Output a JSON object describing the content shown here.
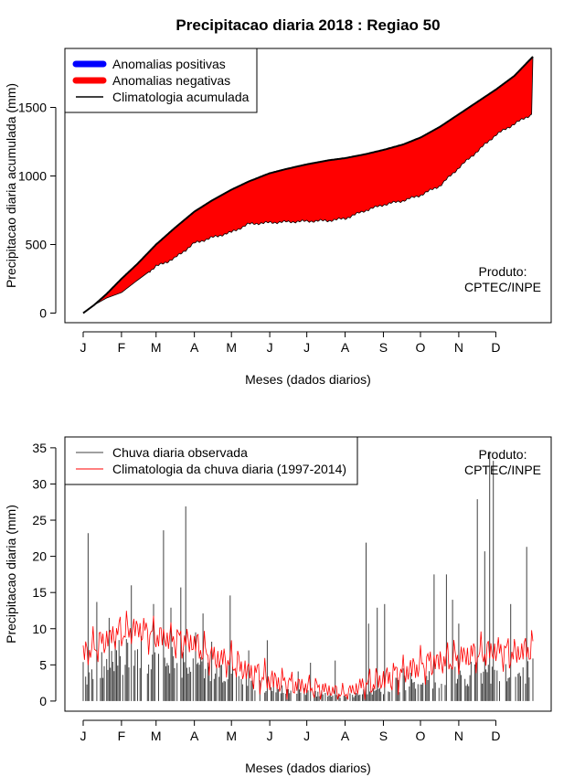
{
  "title": "Precipitacao diaria 2018 : Regiao 50",
  "credit": [
    "Produto:",
    "CPTEC/INPE"
  ],
  "chart_data": [
    {
      "type": "area",
      "xlabel": "Meses (dados diarios)",
      "ylabel": "Precipitacao diaria acumulada (mm)",
      "xlim": [
        1,
        365
      ],
      "ylim": [
        -70,
        1930
      ],
      "yticks": [
        0,
        500,
        1000,
        1500
      ],
      "month_labels": [
        "J",
        "F",
        "M",
        "A",
        "M",
        "J",
        "J",
        "A",
        "S",
        "O",
        "N",
        "D"
      ],
      "month_start_days": [
        1,
        32,
        60,
        91,
        121,
        152,
        182,
        213,
        244,
        274,
        305,
        335
      ],
      "legend": [
        {
          "label": "Anomalias positivas",
          "color": "#0000ff"
        },
        {
          "label": "Anomalias negativas",
          "color": "#ff0000"
        },
        {
          "label": "Climatologia acumulada",
          "color": "#000000"
        }
      ],
      "climatology_cumulative": {
        "days": [
          1,
          10,
          20,
          32,
          45,
          60,
          75,
          91,
          105,
          121,
          135,
          152,
          165,
          182,
          200,
          213,
          230,
          244,
          260,
          274,
          290,
          305,
          320,
          335,
          350,
          365
        ],
        "values": [
          0,
          60,
          140,
          250,
          360,
          500,
          620,
          740,
          820,
          900,
          960,
          1020,
          1050,
          1085,
          1115,
          1130,
          1160,
          1190,
          1230,
          1280,
          1360,
          1450,
          1540,
          1630,
          1730,
          1870
        ]
      },
      "observed_cumulative": {
        "days": [
          1,
          10,
          20,
          32,
          45,
          60,
          75,
          91,
          105,
          121,
          135,
          152,
          165,
          182,
          200,
          213,
          230,
          244,
          260,
          274,
          290,
          305,
          320,
          335,
          350,
          364,
          365
        ],
        "values": [
          0,
          60,
          110,
          150,
          240,
          340,
          400,
          510,
          550,
          590,
          650,
          660,
          665,
          670,
          675,
          690,
          750,
          790,
          820,
          860,
          930,
          1060,
          1180,
          1300,
          1380,
          1450,
          1870
        ]
      }
    },
    {
      "type": "line",
      "xlabel": "Meses (dados diarios)",
      "ylabel": "Precipitacao diaria (mm)",
      "xlim": [
        1,
        365
      ],
      "ylim": [
        -1.4,
        36.5
      ],
      "yticks": [
        0,
        5,
        10,
        15,
        20,
        25,
        30,
        35
      ],
      "month_labels": [
        "J",
        "F",
        "M",
        "A",
        "M",
        "J",
        "J",
        "A",
        "S",
        "O",
        "N",
        "D"
      ],
      "month_start_days": [
        1,
        32,
        60,
        91,
        121,
        152,
        182,
        213,
        244,
        274,
        305,
        335
      ],
      "legend": [
        {
          "label": "Chuva diaria observada",
          "color": "#404040"
        },
        {
          "label": "Climatologia da chuva diaria (1997-2014)",
          "color": "#ff0000"
        }
      ],
      "observed_peaks": {
        "days": [
          5,
          12,
          22,
          40,
          48,
          58,
          66,
          72,
          80,
          84,
          92,
          98,
          105,
          120,
          135,
          150,
          175,
          185,
          205,
          230,
          232,
          239,
          245,
          260,
          285,
          295,
          300,
          305,
          320,
          326,
          330,
          333,
          347,
          360
        ],
        "values": [
          23.2,
          13.7,
          11.5,
          16.0,
          9.0,
          13.4,
          23.6,
          12.9,
          15.7,
          26.9,
          9.5,
          12.1,
          8.2,
          14.6,
          7.0,
          8.4,
          4.1,
          5.3,
          5.6,
          21.9,
          10.7,
          12.9,
          13.4,
          4.5,
          17.5,
          17.5,
          14.0,
          10.7,
          27.9,
          20.7,
          34.5,
          33.2,
          13.4,
          21.3
        ]
      },
      "climatology_daily": {
        "days": [
          1,
          15,
          30,
          45,
          60,
          75,
          91,
          105,
          121,
          135,
          152,
          165,
          182,
          200,
          213,
          225,
          244,
          260,
          274,
          290,
          305,
          320,
          335,
          350,
          365
        ],
        "values": [
          6.5,
          8.0,
          9.5,
          10.0,
          9.0,
          8.5,
          8.0,
          6.0,
          5.5,
          4.0,
          3.0,
          2.5,
          2.0,
          1.5,
          1.0,
          2.0,
          3.0,
          4.0,
          5.0,
          5.5,
          6.0,
          6.5,
          7.0,
          6.5,
          7.5
        ]
      }
    }
  ]
}
